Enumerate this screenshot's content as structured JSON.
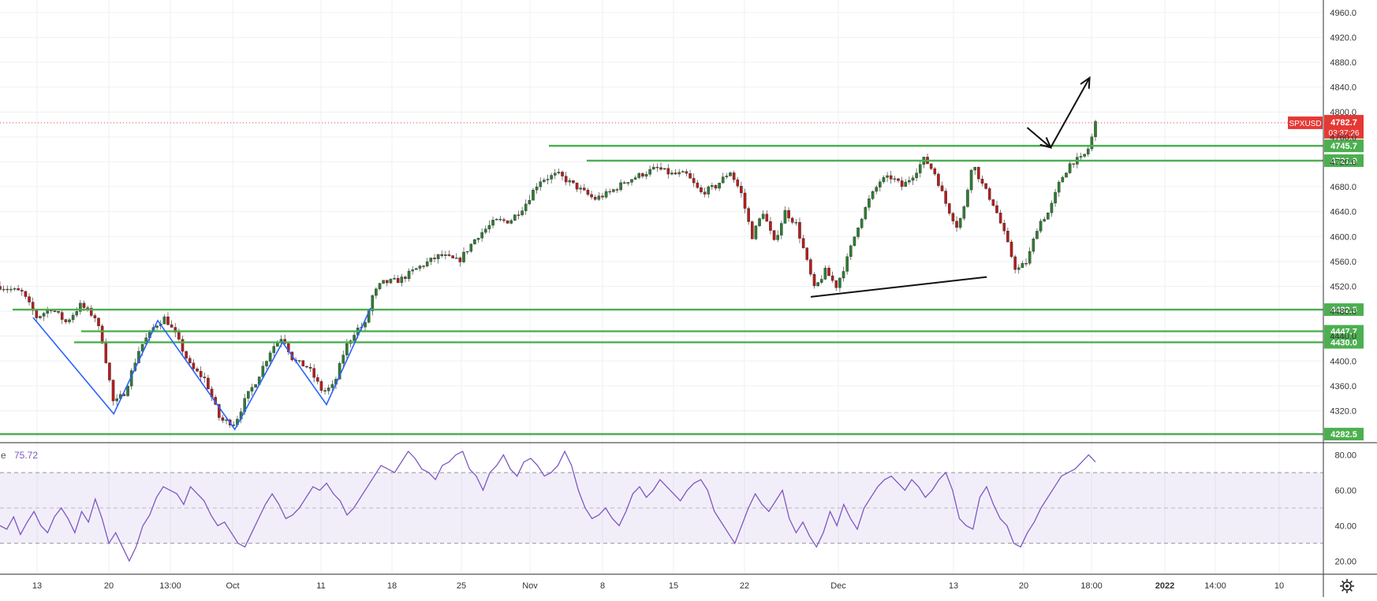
{
  "chart_data": [
    {
      "type": "candlestick",
      "title": "",
      "symbol": "SPXUSD",
      "last_price": 4782.7,
      "last_price_label": "4782.7",
      "countdown": "03:37:26",
      "ylim": [
        4270,
        4980
      ],
      "y_ticks": [
        4320,
        4360,
        4400,
        4440,
        4480,
        4520,
        4560,
        4600,
        4640,
        4680,
        4720,
        4760,
        4800,
        4840,
        4880,
        4920,
        4960
      ],
      "y_tick_labels": [
        "4320.0",
        "4360.0",
        "4400.0",
        "4440.0",
        "4480.0",
        "4520.0",
        "4560.0",
        "4600.0",
        "4640.0",
        "4680.0",
        "4720.0",
        "4760.0",
        "4800.0",
        "4840.0",
        "4880.0",
        "4920.0",
        "4960.0"
      ],
      "x_tick_labels": [
        "13",
        "20",
        "13:00",
        "Oct",
        "11",
        "18",
        "25",
        "Nov",
        "8",
        "15",
        "22",
        "Dec",
        "13",
        "20",
        "18:00",
        "2022",
        "14:00",
        "10"
      ],
      "x_tick_bold": [
        false,
        false,
        false,
        false,
        false,
        false,
        false,
        false,
        false,
        false,
        false,
        false,
        false,
        false,
        false,
        true,
        false,
        false
      ],
      "grid": true,
      "price_path": [
        [
          0.0,
          4520
        ],
        [
          0.03,
          4510
        ],
        [
          0.05,
          4470
        ],
        [
          0.07,
          4485
        ],
        [
          0.09,
          4462
        ],
        [
          0.11,
          4490
        ],
        [
          0.13,
          4470
        ],
        [
          0.14,
          4430
        ],
        [
          0.155,
          4330
        ],
        [
          0.17,
          4350
        ],
        [
          0.19,
          4420
        ],
        [
          0.21,
          4455
        ],
        [
          0.225,
          4470
        ],
        [
          0.24,
          4440
        ],
        [
          0.26,
          4390
        ],
        [
          0.28,
          4370
        ],
        [
          0.3,
          4305
        ],
        [
          0.32,
          4300
        ],
        [
          0.335,
          4340
        ],
        [
          0.35,
          4370
        ],
        [
          0.37,
          4420
        ],
        [
          0.385,
          4440
        ],
        [
          0.4,
          4400
        ],
        [
          0.42,
          4390
        ],
        [
          0.44,
          4350
        ],
        [
          0.455,
          4360
        ],
        [
          0.47,
          4420
        ],
        [
          0.485,
          4450
        ],
        [
          0.5,
          4460
        ],
        [
          0.505,
          4500
        ],
        [
          0.52,
          4525
        ],
        [
          0.545,
          4530
        ],
        [
          0.57,
          4550
        ],
        [
          0.6,
          4570
        ],
        [
          0.625,
          4560
        ],
        [
          0.65,
          4600
        ],
        [
          0.675,
          4625
        ],
        [
          0.695,
          4625
        ],
        [
          0.715,
          4650
        ],
        [
          0.735,
          4690
        ],
        [
          0.76,
          4700
        ],
        [
          0.785,
          4680
        ],
        [
          0.81,
          4660
        ],
        [
          0.83,
          4670
        ],
        [
          0.855,
          4690
        ],
        [
          0.875,
          4700
        ],
        [
          0.895,
          4710
        ],
        [
          0.915,
          4700
        ],
        [
          0.935,
          4700
        ],
        [
          0.955,
          4670
        ],
        [
          0.975,
          4680
        ],
        [
          0.995,
          4705
        ],
        [
          1.01,
          4670
        ],
        [
          1.025,
          4600
        ],
        [
          1.04,
          4640
        ],
        [
          1.055,
          4590
        ],
        [
          1.07,
          4640
        ],
        [
          1.085,
          4620
        ],
        [
          1.095,
          4580
        ],
        [
          1.11,
          4515
        ],
        [
          1.125,
          4545
        ],
        [
          1.14,
          4520
        ],
        [
          1.155,
          4565
        ],
        [
          1.17,
          4620
        ],
        [
          1.185,
          4660
        ],
        [
          1.2,
          4690
        ],
        [
          1.215,
          4695
        ],
        [
          1.23,
          4680
        ],
        [
          1.245,
          4700
        ],
        [
          1.26,
          4725
        ],
        [
          1.275,
          4700
        ],
        [
          1.29,
          4650
        ],
        [
          1.305,
          4615
        ],
        [
          1.315,
          4650
        ],
        [
          1.325,
          4720
        ],
        [
          1.34,
          4680
        ],
        [
          1.355,
          4650
        ],
        [
          1.37,
          4600
        ],
        [
          1.385,
          4545
        ],
        [
          1.4,
          4560
        ],
        [
          1.415,
          4620
        ],
        [
          1.43,
          4640
        ],
        [
          1.445,
          4690
        ],
        [
          1.46,
          4720
        ],
        [
          1.475,
          4725
        ],
        [
          1.485,
          4745
        ],
        [
          1.493,
          4782.7
        ]
      ],
      "levels": [
        {
          "value": 4745.7,
          "label": "4745.7"
        },
        {
          "value": 4721.9,
          "label": "4721.9"
        },
        {
          "value": 4482.5,
          "label": "4482.5"
        },
        {
          "value": 4447.7,
          "label": "4447.7"
        },
        {
          "value": 4430.0,
          "label": "4430.0"
        },
        {
          "value": 4282.5,
          "label": "4282.5"
        }
      ],
      "trendline": [
        [
          1.105,
          4503
        ],
        [
          1.345,
          4535
        ]
      ],
      "zigzag": [
        [
          0.045,
          4470
        ],
        [
          0.155,
          4315
        ],
        [
          0.215,
          4465
        ],
        [
          0.32,
          4290
        ],
        [
          0.385,
          4430
        ],
        [
          0.445,
          4330
        ],
        [
          0.505,
          4485
        ]
      ],
      "projection": [
        [
          1.4,
          4775
        ],
        [
          1.432,
          4743
        ],
        [
          1.485,
          4855
        ]
      ]
    },
    {
      "type": "line",
      "title": "",
      "indicator_label": "e",
      "value": 75.72,
      "value_label": "75.72",
      "ylim": [
        13,
        86
      ],
      "y_ticks": [
        20,
        40,
        60,
        80
      ],
      "y_tick_labels": [
        "20.00",
        "40.00",
        "60.00",
        "80.00"
      ],
      "band": [
        30,
        70
      ],
      "midline": 50,
      "series": [
        {
          "values": [
            40,
            38,
            45,
            35,
            42,
            48,
            40,
            36,
            45,
            50,
            44,
            36,
            48,
            42,
            55,
            44,
            30,
            36,
            28,
            20,
            28,
            40,
            46,
            56,
            62,
            60,
            58,
            52,
            62,
            58,
            54,
            46,
            40,
            42,
            36,
            30,
            28,
            36,
            44,
            52,
            58,
            52,
            44,
            46,
            50,
            56,
            62,
            60,
            64,
            58,
            54,
            46,
            50,
            56,
            62,
            68,
            74,
            72,
            70,
            76,
            82,
            78,
            72,
            70,
            66,
            74,
            76,
            80,
            82,
            72,
            68,
            60,
            70,
            74,
            80,
            72,
            68,
            76,
            78,
            74,
            68,
            70,
            74,
            82,
            74,
            60,
            50,
            44,
            46,
            50,
            44,
            40,
            48,
            58,
            62,
            56,
            60,
            66,
            62,
            58,
            54,
            60,
            64,
            66,
            60,
            48,
            42,
            36,
            30,
            40,
            50,
            58,
            52,
            48,
            54,
            60,
            44,
            36,
            42,
            34,
            28,
            36,
            48,
            40,
            52,
            44,
            38,
            50,
            56,
            62,
            66,
            68,
            64,
            60,
            66,
            62,
            56,
            60,
            66,
            70,
            60,
            44,
            40,
            38,
            56,
            62,
            52,
            44,
            40,
            30,
            28,
            36,
            42,
            50,
            56,
            62,
            68,
            70,
            72,
            76,
            80,
            76
          ]
        }
      ]
    }
  ],
  "settings": {
    "icon": "gear-icon"
  },
  "colors": {
    "up": "#26a69a",
    "down": "#ef5350",
    "level": "#4caf50",
    "price_tag": "#e53935",
    "rsi": "#7e57c2",
    "zigzag": "#2962ff",
    "drawing": "#111111"
  }
}
